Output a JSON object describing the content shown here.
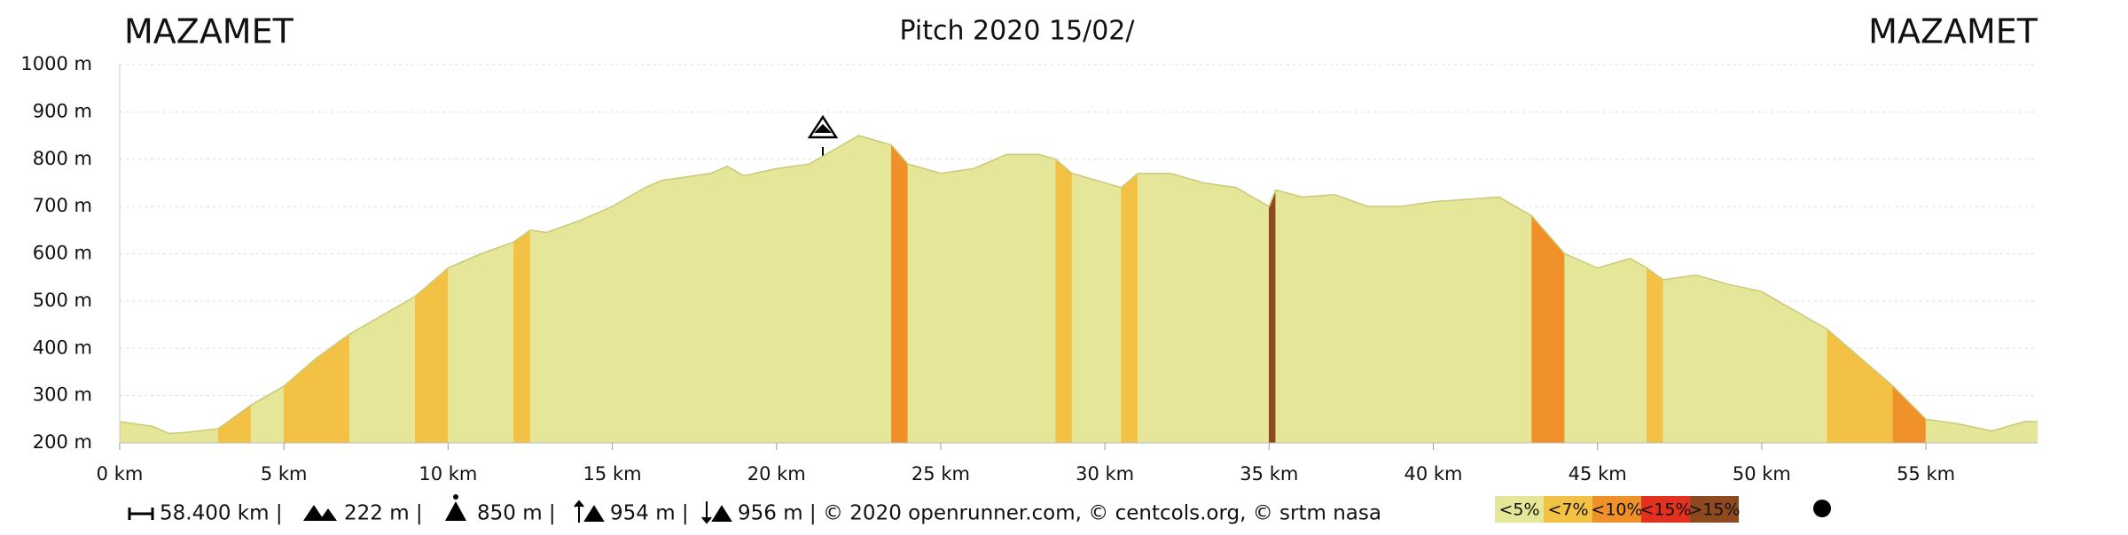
{
  "chart_data": {
    "type": "area",
    "title": "Pitch 2020 15/02/",
    "start_label": "MAZAMET",
    "end_label": "MAZAMET",
    "x": [
      0,
      1,
      1.5,
      2,
      3,
      4,
      5,
      6,
      7,
      8,
      9,
      10,
      11,
      12,
      12.5,
      13,
      14,
      15,
      16,
      16.5,
      17,
      18,
      18.5,
      19,
      20,
      21,
      22,
      22.5,
      23,
      23.5,
      24,
      25,
      26,
      27,
      28,
      28.5,
      29,
      30,
      30.5,
      31,
      32,
      33,
      34,
      35,
      35.2,
      36,
      37,
      38,
      39,
      40,
      41,
      42,
      43,
      44,
      45,
      46,
      46.5,
      47,
      48,
      49,
      50,
      51,
      52,
      53,
      54,
      55,
      56,
      57,
      58,
      58.4
    ],
    "values": [
      245,
      235,
      220,
      222,
      230,
      280,
      320,
      380,
      430,
      470,
      510,
      570,
      600,
      625,
      650,
      645,
      670,
      700,
      740,
      755,
      760,
      770,
      785,
      765,
      780,
      790,
      830,
      850,
      840,
      830,
      790,
      770,
      780,
      810,
      810,
      800,
      770,
      750,
      740,
      770,
      770,
      750,
      740,
      700,
      735,
      720,
      725,
      700,
      700,
      710,
      715,
      720,
      680,
      600,
      570,
      590,
      570,
      545,
      555,
      535,
      520,
      480,
      440,
      380,
      320,
      250,
      240,
      225,
      245,
      245
    ],
    "xlim": [
      0,
      58.4
    ],
    "ylim": [
      200,
      1000
    ],
    "xticks": [
      {
        "value": 0,
        "label": "0 km"
      },
      {
        "value": 5,
        "label": "5 km"
      },
      {
        "value": 10,
        "label": "10 km"
      },
      {
        "value": 15,
        "label": "15 km"
      },
      {
        "value": 20,
        "label": "20 km"
      },
      {
        "value": 25,
        "label": "25 km"
      },
      {
        "value": 30,
        "label": "30 km"
      },
      {
        "value": 35,
        "label": "35 km"
      },
      {
        "value": 40,
        "label": "40 km"
      },
      {
        "value": 45,
        "label": "45 km"
      },
      {
        "value": 50,
        "label": "50 km"
      },
      {
        "value": 55,
        "label": "55 km"
      }
    ],
    "yticks": [
      {
        "value": 200,
        "label": "200 m"
      },
      {
        "value": 300,
        "label": "300 m"
      },
      {
        "value": 400,
        "label": "400 m"
      },
      {
        "value": 500,
        "label": "500 m"
      },
      {
        "value": 600,
        "label": "600 m"
      },
      {
        "value": 700,
        "label": "700 m"
      },
      {
        "value": 800,
        "label": "800 m"
      },
      {
        "value": 900,
        "label": "900 m"
      },
      {
        "value": 1000,
        "label": "1000 m"
      }
    ],
    "grid": true,
    "slope_classes": [
      {
        "threshold": {
          "value": 5,
          "label": "<5%"
        },
        "color": "#e5e698"
      },
      {
        "threshold": {
          "value": 7,
          "label": "<7%"
        },
        "color": "#f3c244"
      },
      {
        "threshold": {
          "value": 10,
          "label": "<10%"
        },
        "color": "#ef9029"
      },
      {
        "threshold": {
          "value": 15,
          "label": "<15%"
        },
        "color": "#e2321f"
      },
      {
        "threshold": {
          "value": 15,
          "label": ">15%"
        },
        "color": "#8e4a1e"
      }
    ],
    "summary": {
      "distance": "58.400 km |",
      "min_alt": "222 m |",
      "max_alt": "850 m |",
      "ascent": "954 m |",
      "descent": "956 m | © 2020 openrunner.com, © centcols.org, © srtm nasa"
    }
  }
}
